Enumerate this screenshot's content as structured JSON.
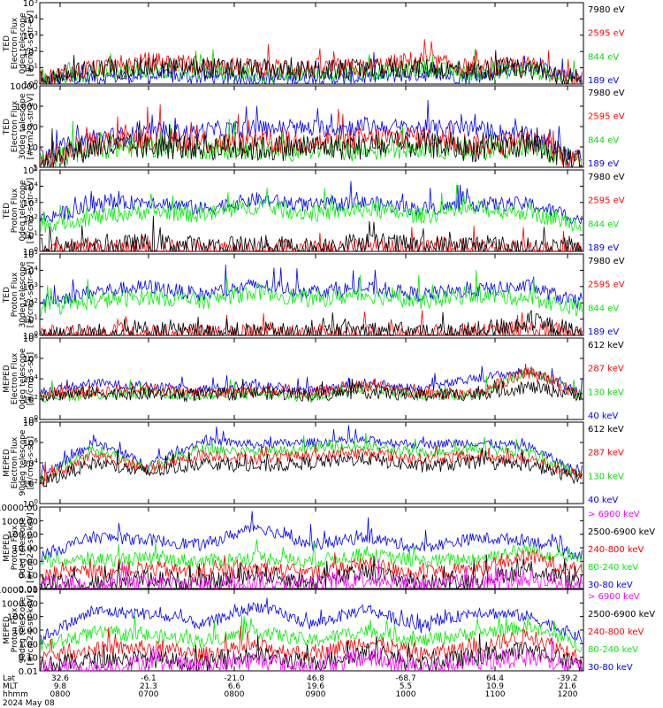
{
  "chart_data": {
    "type": "line",
    "date": "2024 May 08",
    "time_axis": {
      "row_labels": [
        "Lat",
        "MLT",
        "hhmm"
      ],
      "ticks": [
        {
          "lat": "32.6",
          "mlt": "9.8",
          "hhmm": "0800"
        },
        {
          "lat": "-6.1",
          "mlt": "21.3",
          "hhmm": "0700"
        },
        {
          "lat": "-21.0",
          "mlt": "6.6",
          "hhmm": "0800"
        },
        {
          "lat": "46.8",
          "mlt": "19.6",
          "hhmm": "0900"
        },
        {
          "lat": "-68.7",
          "mlt": "5.5",
          "hhmm": "1000"
        },
        {
          "lat": "64.4",
          "mlt": "10.9",
          "hhmm": "1100"
        },
        {
          "lat": "-39.2",
          "mlt": "21.6",
          "hhmm": "1200"
        }
      ]
    },
    "panels": [
      {
        "ylabel": [
          "TED",
          "Electron Flux",
          "0deg telescope",
          "[#/cm2-s-str-eV]"
        ],
        "scale": "log",
        "ytick_labels": [
          "10^0",
          "10^1",
          "10^2",
          "10^3",
          "10^4",
          "10^5"
        ],
        "series": [
          {
            "name": "7980 eV",
            "color": "#000000",
            "level": [
              0.3,
              0.9,
              1.0,
              1.0,
              0.9,
              0.8,
              0.9,
              1.0,
              0.8,
              1.0,
              0.2
            ]
          },
          {
            "name": "2595 eV",
            "color": "#ff0000",
            "level": [
              0.3,
              1.0,
              1.4,
              1.2,
              1.0,
              1.0,
              1.0,
              1.5,
              0.9,
              1.2,
              0.2
            ]
          },
          {
            "name": "844 eV",
            "color": "#00dd00",
            "level": [
              0.2,
              0.7,
              0.9,
              0.8,
              0.6,
              0.6,
              0.7,
              1.0,
              0.6,
              0.9,
              0.1
            ]
          },
          {
            "name": "189 eV",
            "color": "#0000ff",
            "level": [
              0.2,
              0.4,
              0.5,
              0.4,
              0.3,
              0.3,
              0.4,
              0.6,
              0.4,
              1.2,
              0.1
            ]
          }
        ]
      },
      {
        "ylabel": [
          "TED",
          "Electron Flux",
          "30deg telescope",
          "[#/cm2-s-str-eV]"
        ],
        "scale": "log",
        "ytick_labels": [
          "1",
          "10",
          "100",
          "1000",
          "10000"
        ],
        "series": [
          {
            "name": "7980 eV",
            "color": "#000000",
            "level": [
              0.3,
              1.0,
              1.0,
              1.0,
              0.9,
              1.0,
              1.0,
              1.1,
              0.9,
              1.1,
              0.3
            ]
          },
          {
            "name": "2595 eV",
            "color": "#ff0000",
            "level": [
              0.3,
              1.2,
              1.5,
              1.2,
              1.2,
              1.2,
              1.4,
              1.5,
              1.1,
              1.2,
              0.3
            ]
          },
          {
            "name": "844 eV",
            "color": "#00dd00",
            "level": [
              0.3,
              0.9,
              1.0,
              0.9,
              0.8,
              0.8,
              0.8,
              1.0,
              0.8,
              1.0,
              0.2
            ]
          },
          {
            "name": "189 eV",
            "color": "#0000ff",
            "level": [
              0.6,
              1.5,
              1.6,
              1.8,
              1.9,
              1.9,
              2.0,
              1.9,
              1.9,
              1.5,
              0.5
            ]
          }
        ]
      },
      {
        "ylabel": [
          "TED",
          "Proton Flux",
          "0deg telescope",
          "[#/cm2-s-str-eV]"
        ],
        "scale": "log",
        "ytick_labels": [
          "10^0",
          "10^1",
          "10^2",
          "10^3",
          "10^4",
          "10^5"
        ],
        "series": [
          {
            "name": "7980 eV",
            "color": "#000000",
            "level": [
              0.2,
              0.2,
              0.5,
              0.3,
              0.4,
              0.2,
              0.6,
              0.3,
              0.4,
              0.2,
              0.2
            ]
          },
          {
            "name": "2595 eV",
            "color": "#ff0000",
            "level": [
              0.1,
              0.1,
              0.2,
              0.1,
              0.2,
              0.1,
              0.3,
              0.1,
              0.2,
              0.1,
              0.1
            ]
          },
          {
            "name": "844 eV",
            "color": "#00ee00",
            "level": [
              1.6,
              2.1,
              2.5,
              2.2,
              2.8,
              2.3,
              2.6,
              2.2,
              2.6,
              2.4,
              1.6
            ]
          },
          {
            "name": "189 eV",
            "color": "#0000ff",
            "level": [
              2.0,
              2.8,
              3.1,
              2.6,
              3.2,
              2.8,
              3.0,
              2.6,
              2.9,
              2.9,
              1.9
            ]
          }
        ]
      },
      {
        "ylabel": [
          "TED",
          "Proton Flux",
          "30deg telescope",
          "[#/cm2-s-str-eV]"
        ],
        "scale": "log",
        "ytick_labels": [
          "10^0",
          "10^1",
          "10^2",
          "10^3",
          "10^4",
          "10^5"
        ],
        "series": [
          {
            "name": "7980 eV",
            "color": "#000000",
            "level": [
              0.1,
              0.1,
              0.3,
              0.1,
              0.2,
              0.1,
              0.3,
              0.1,
              0.2,
              0.8,
              0.1
            ]
          },
          {
            "name": "2595 eV",
            "color": "#ff0000",
            "level": [
              0.1,
              0.1,
              0.1,
              0.1,
              0.1,
              0.1,
              0.1,
              0.1,
              0.1,
              0.4,
              0.1
            ]
          },
          {
            "name": "844 eV",
            "color": "#00ee00",
            "level": [
              1.6,
              2.1,
              2.4,
              2.1,
              2.7,
              2.2,
              2.5,
              2.1,
              2.5,
              2.3,
              1.6
            ]
          },
          {
            "name": "189 eV",
            "color": "#0000ff",
            "level": [
              2.0,
              2.7,
              3.0,
              2.5,
              3.1,
              2.7,
              2.9,
              2.5,
              2.8,
              3.0,
              1.9
            ]
          }
        ]
      },
      {
        "ylabel": [
          "MEPED",
          "Electron Flux",
          "0deg telescope",
          "[#/cm2-s-str]"
        ],
        "scale": "log",
        "ytick_labels": [
          "10^0",
          "10^2",
          "10^4",
          "10^6",
          "10^8"
        ],
        "series": [
          {
            "name": "612 keV",
            "color": "#000000",
            "level": [
              2.4,
              2.6,
              2.5,
              2.4,
              2.6,
              2.4,
              2.7,
              2.4,
              2.5,
              3.2,
              2.4
            ]
          },
          {
            "name": "287 keV",
            "color": "#ff0000",
            "level": [
              2.4,
              2.8,
              3.0,
              2.6,
              2.8,
              2.5,
              3.4,
              2.5,
              2.6,
              4.6,
              2.4
            ]
          },
          {
            "name": "130 keV",
            "color": "#00dd00",
            "level": [
              2.2,
              2.4,
              2.6,
              2.3,
              2.5,
              2.2,
              3.2,
              2.3,
              2.4,
              4.8,
              2.2
            ]
          },
          {
            "name": "40 keV",
            "color": "#0000ff",
            "level": [
              2.6,
              3.6,
              3.2,
              3.0,
              3.4,
              2.8,
              3.6,
              3.0,
              4.0,
              4.8,
              2.6
            ]
          }
        ]
      },
      {
        "ylabel": [
          "MEPED",
          "Electron Flux",
          "90deg telescope",
          "[#/cm2-s-str]"
        ],
        "scale": "log",
        "ytick_labels": [
          "10^0",
          "10^2",
          "10^4",
          "10^6",
          "10^8"
        ],
        "series": [
          {
            "name": "612 keV",
            "color": "#000000",
            "level": [
              2.0,
              4.0,
              3.0,
              4.0,
              3.6,
              4.0,
              4.4,
              3.6,
              4.0,
              3.8,
              2.4
            ]
          },
          {
            "name": "287 keV",
            "color": "#ff0000",
            "level": [
              2.2,
              4.8,
              3.4,
              4.8,
              4.4,
              4.6,
              5.0,
              4.4,
              4.6,
              4.4,
              2.6
            ]
          },
          {
            "name": "130 keV",
            "color": "#00dd00",
            "level": [
              2.4,
              5.4,
              3.6,
              5.4,
              5.0,
              5.4,
              5.6,
              5.0,
              5.4,
              5.0,
              2.6
            ]
          },
          {
            "name": "40 keV",
            "color": "#0000ff",
            "level": [
              2.6,
              6.0,
              3.8,
              6.2,
              5.8,
              6.0,
              6.2,
              5.8,
              6.0,
              5.6,
              2.8
            ]
          }
        ]
      },
      {
        "ylabel": [
          "MEPED",
          "Proton Flux",
          "0deg telescope",
          "[#/cm2-s-str-keV]"
        ],
        "scale": "log",
        "ytick_labels": [
          "0.01",
          "0.10",
          "1.00",
          "10.00",
          "100.00",
          "1000.00",
          "10000.00"
        ],
        "series": [
          {
            "name": "> 6900 keV",
            "color": "#ff00ff",
            "level": [
              -1.8,
              -1.8,
              -1.6,
              -1.8,
              -1.4,
              -1.8,
              -1.2,
              -1.8,
              -1.6,
              -1.2,
              -1.8
            ]
          },
          {
            "name": "2500-6900 keV",
            "color": "#000000",
            "level": [
              -1.6,
              -1.6,
              -1.2,
              -1.6,
              -0.9,
              -1.6,
              -0.8,
              -1.6,
              -1.4,
              -0.6,
              -1.6
            ]
          },
          {
            "name": "240-800 keV",
            "color": "#ff0000",
            "level": [
              -0.9,
              -0.8,
              -0.5,
              -0.9,
              -0.5,
              -0.9,
              -0.2,
              -0.9,
              -0.6,
              0.4,
              -0.9
            ]
          },
          {
            "name": "80-240 keV",
            "color": "#00ee00",
            "level": [
              0.0,
              0.1,
              0.2,
              0.0,
              0.3,
              0.0,
              0.5,
              0.0,
              0.2,
              0.9,
              0.0
            ]
          },
          {
            "name": "30-80 keV",
            "color": "#0000ff",
            "level": [
              0.4,
              1.8,
              1.6,
              1.2,
              2.6,
              1.2,
              1.8,
              1.0,
              1.7,
              1.6,
              0.4
            ]
          }
        ]
      },
      {
        "ylabel": [
          "MEPED",
          "Proton Flux",
          "90deg telescope",
          "[#/cm2-s-str-keV]"
        ],
        "scale": "log",
        "ytick_labels": [
          "0.01",
          "0.10",
          "1.00",
          "10.00",
          "100.00",
          "1000.00",
          "10000.00"
        ],
        "series": [
          {
            "name": "> 6900 keV",
            "color": "#ff00ff",
            "level": [
              -1.8,
              -1.8,
              -1.4,
              -1.8,
              -1.2,
              -1.8,
              -1.0,
              -1.8,
              -1.3,
              -1.0,
              -1.8
            ]
          },
          {
            "name": "2500-6900 keV",
            "color": "#000000",
            "level": [
              -1.6,
              -1.2,
              -1.1,
              -1.5,
              -0.8,
              -1.5,
              -0.6,
              -1.5,
              -1.0,
              -0.4,
              -1.6
            ]
          },
          {
            "name": "240-800 keV",
            "color": "#ff0000",
            "level": [
              -1.0,
              -0.4,
              -0.3,
              -0.8,
              -0.2,
              -0.8,
              0.2,
              -0.8,
              -0.3,
              0.6,
              -1.0
            ]
          },
          {
            "name": "80-240 keV",
            "color": "#00ee00",
            "level": [
              -0.2,
              0.8,
              0.6,
              0.2,
              0.9,
              0.2,
              1.0,
              0.2,
              0.8,
              1.2,
              -0.2
            ]
          },
          {
            "name": "30-80 keV",
            "color": "#0000ff",
            "level": [
              0.4,
              2.4,
              2.2,
              1.4,
              2.8,
              1.4,
              2.6,
              1.2,
              2.4,
              2.0,
              0.4
            ]
          }
        ]
      }
    ]
  }
}
